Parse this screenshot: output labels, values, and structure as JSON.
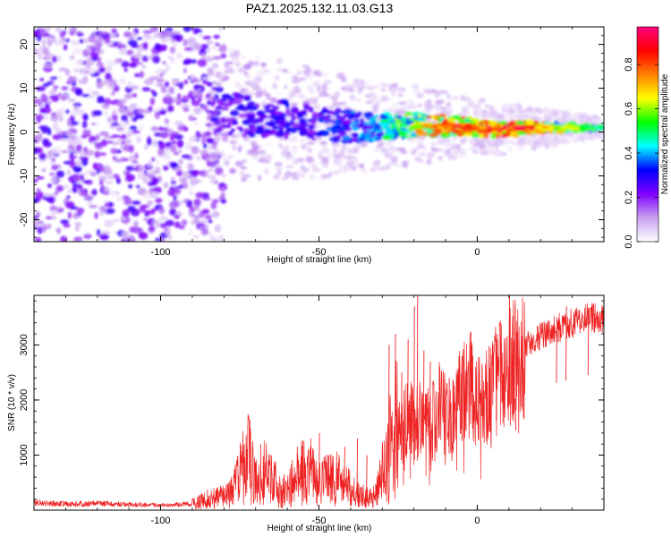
{
  "chart_data": [
    {
      "type": "heatmap",
      "title": "PAZ1.2025.132.11.03.G13",
      "xlabel": "Height of straight line (km)",
      "ylabel": "Frequency (Hz)",
      "xlim": [
        -140,
        40
      ],
      "ylim": [
        -25,
        24
      ],
      "x_ticks": [
        -100,
        -50,
        0
      ],
      "y_ticks": [
        -20,
        -10,
        0,
        10,
        20
      ],
      "x_tick_labels": [
        "-100",
        "-50",
        "0"
      ],
      "y_tick_labels": [
        "-20",
        "-10",
        "0",
        "10",
        "20"
      ],
      "colorbar": {
        "label": "Normalized spectral amplitude",
        "range": [
          0,
          0.97
        ],
        "ticks": [
          0,
          0.2,
          0.4,
          0.6,
          0.8
        ],
        "tick_labels": [
          "0.0",
          "0.2",
          "0.4",
          "0.6",
          "0.8"
        ],
        "colors": [
          "#ffffff",
          "#c8a0f0",
          "#8000ff",
          "#0000ff",
          "#00ffff",
          "#00ff00",
          "#ffff00",
          "#ff8000",
          "#ff0000",
          "#ff0080"
        ]
      },
      "ridge": {
        "x": [
          -85,
          -75,
          -65,
          -55,
          -45,
          -35,
          -25,
          -15,
          -5,
          5,
          15,
          25,
          40
        ],
        "frequency": [
          4.5,
          4,
          3,
          2.5,
          1.5,
          1,
          1.5,
          1.5,
          1.5,
          0.5,
          1,
          1,
          1
        ],
        "amplitude": [
          0.25,
          0.3,
          0.3,
          0.3,
          0.35,
          0.4,
          0.55,
          0.75,
          0.85,
          0.85,
          0.9,
          0.65,
          0.5
        ]
      },
      "noise_region": {
        "x": [
          -140,
          -90
        ],
        "amplitude": 0.12
      }
    },
    {
      "type": "line",
      "xlabel": "Height of straight line (km)",
      "ylabel": "SNR (10 * v/v)",
      "xlim": [
        -140,
        40
      ],
      "ylim": [
        0,
        3900
      ],
      "x_ticks": [
        -100,
        -50,
        0
      ],
      "y_ticks": [
        1000,
        2000,
        3000
      ],
      "x_tick_labels": [
        "-100",
        "-50",
        "0"
      ],
      "y_tick_labels": [
        "1000",
        "2000",
        "3000"
      ],
      "color": "#ee2222",
      "series": [
        {
          "x": [
            -140,
            -130,
            -120,
            -110,
            -100,
            -95,
            -90,
            -85,
            -80,
            -77,
            -75,
            -72,
            -70,
            -68,
            -65,
            -62,
            -60,
            -58,
            -55,
            -52,
            -50,
            -48,
            -45,
            -42,
            -40,
            -38,
            -35,
            -32,
            -30,
            -28,
            -26,
            -24,
            -22,
            -20,
            -18,
            -15,
            -12,
            -10,
            -8,
            -5,
            -2,
            0,
            3,
            5,
            8,
            10,
            12,
            15,
            20,
            25,
            30,
            35,
            40
          ],
          "y": [
            140,
            110,
            120,
            100,
            90,
            95,
            110,
            200,
            250,
            350,
            700,
            950,
            500,
            750,
            600,
            300,
            400,
            500,
            700,
            700,
            450,
            550,
            600,
            450,
            400,
            300,
            220,
            280,
            700,
            1000,
            1500,
            1300,
            1800,
            1500,
            1700,
            1500,
            1900,
            1700,
            1600,
            2100,
            2300,
            1900,
            2100,
            2300,
            2400,
            2700,
            2900,
            3000,
            3150,
            3300,
            3400,
            3500,
            3450
          ]
        }
      ],
      "spikes": [
        {
          "x": -80,
          "y": 400
        },
        {
          "x": -75,
          "y": 1220
        },
        {
          "x": -72,
          "y": 1650
        },
        {
          "x": -57,
          "y": 1150
        },
        {
          "x": -50,
          "y": 1400
        },
        {
          "x": -47,
          "y": 1000
        },
        {
          "x": -42,
          "y": 1150
        },
        {
          "x": -38,
          "y": 1300
        },
        {
          "x": -35,
          "y": 1000
        },
        {
          "x": -28,
          "y": 3000
        },
        {
          "x": -26,
          "y": 3200
        },
        {
          "x": -24,
          "y": 2500
        },
        {
          "x": -22,
          "y": 3100
        },
        {
          "x": -20,
          "y": 3700
        },
        {
          "x": -19,
          "y": 3900
        },
        {
          "x": -17,
          "y": 2900
        },
        {
          "x": -15,
          "y": 2700
        },
        {
          "x": -12,
          "y": 2600
        },
        {
          "x": -9,
          "y": 2400
        },
        {
          "x": -5,
          "y": 2800
        },
        {
          "x": 4,
          "y": 2950
        },
        {
          "x": 6,
          "y": 3200
        },
        {
          "x": 10,
          "y": 3900
        },
        {
          "x": 12,
          "y": 1450
        },
        {
          "x": 15,
          "y": 3100
        },
        {
          "x": 25,
          "y": 3500
        },
        {
          "x": 28,
          "y": 3700
        },
        {
          "x": 35,
          "y": 3650
        }
      ]
    }
  ]
}
